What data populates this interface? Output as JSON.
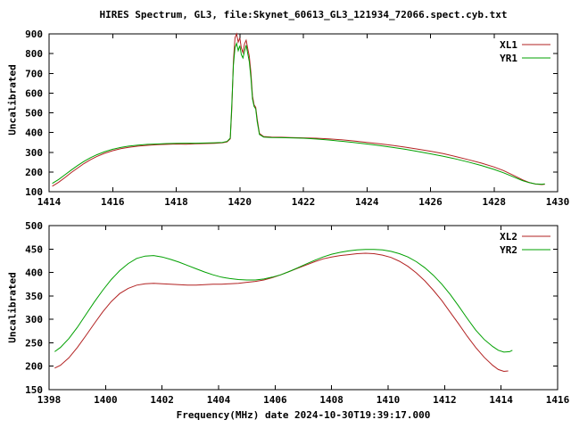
{
  "title": "HIRES Spectrum, GL3, file:Skynet_60613_GL3_121934_72066.spect.cyb.txt",
  "xlabel": "Frequency(MHz) date 2024-10-30T19:39:17.000",
  "colors": {
    "axis": "#000000",
    "background": "#ffffff",
    "red_trace": "#b22222",
    "green_trace": "#00a000"
  },
  "chart_data": [
    {
      "type": "line",
      "panel": "top",
      "ylabel": "Uncalibrated",
      "xlim": [
        1414,
        1430
      ],
      "ylim": [
        100,
        900
      ],
      "xticks": [
        1414,
        1416,
        1418,
        1420,
        1422,
        1424,
        1426,
        1428,
        1430
      ],
      "yticks": [
        100,
        200,
        300,
        400,
        500,
        600,
        700,
        800,
        900
      ],
      "grid": false,
      "legend_position": "top-right",
      "series": [
        {
          "name": "XL1",
          "color": "#b22222",
          "points": [
            [
              1414.1,
              128
            ],
            [
              1414.3,
              148
            ],
            [
              1414.5,
              172
            ],
            [
              1414.7,
              197
            ],
            [
              1414.9,
              220
            ],
            [
              1415.1,
              243
            ],
            [
              1415.3,
              262
            ],
            [
              1415.5,
              278
            ],
            [
              1415.75,
              295
            ],
            [
              1416.0,
              308
            ],
            [
              1416.25,
              318
            ],
            [
              1416.5,
              325
            ],
            [
              1416.8,
              331
            ],
            [
              1417.1,
              335
            ],
            [
              1417.4,
              338
            ],
            [
              1417.7,
              340
            ],
            [
              1418.0,
              342
            ],
            [
              1418.3,
              341
            ],
            [
              1418.6,
              343
            ],
            [
              1418.9,
              344
            ],
            [
              1419.2,
              345
            ],
            [
              1419.45,
              348
            ],
            [
              1419.6,
              352
            ],
            [
              1419.7,
              368
            ],
            [
              1419.75,
              520
            ],
            [
              1419.8,
              760
            ],
            [
              1419.85,
              880
            ],
            [
              1419.9,
              900
            ],
            [
              1419.95,
              858
            ],
            [
              1420.0,
              880
            ],
            [
              1420.05,
              828
            ],
            [
              1420.1,
              805
            ],
            [
              1420.15,
              850
            ],
            [
              1420.2,
              868
            ],
            [
              1420.25,
              825
            ],
            [
              1420.3,
              788
            ],
            [
              1420.35,
              705
            ],
            [
              1420.4,
              585
            ],
            [
              1420.45,
              540
            ],
            [
              1420.5,
              528
            ],
            [
              1420.55,
              468
            ],
            [
              1420.62,
              395
            ],
            [
              1420.75,
              380
            ],
            [
              1421.0,
              377
            ],
            [
              1421.3,
              376
            ],
            [
              1421.6,
              375
            ],
            [
              1422.0,
              373
            ],
            [
              1422.4,
              371
            ],
            [
              1422.8,
              368
            ],
            [
              1423.2,
              363
            ],
            [
              1423.6,
              357
            ],
            [
              1424.0,
              350
            ],
            [
              1424.4,
              343
            ],
            [
              1424.8,
              335
            ],
            [
              1425.2,
              326
            ],
            [
              1425.6,
              316
            ],
            [
              1426.0,
              305
            ],
            [
              1426.4,
              293
            ],
            [
              1426.8,
              278
            ],
            [
              1427.2,
              262
            ],
            [
              1427.6,
              245
            ],
            [
              1428.0,
              225
            ],
            [
              1428.3,
              207
            ],
            [
              1428.6,
              184
            ],
            [
              1428.9,
              160
            ],
            [
              1429.1,
              147
            ],
            [
              1429.3,
              139
            ],
            [
              1429.5,
              136
            ],
            [
              1429.6,
              138
            ]
          ]
        },
        {
          "name": "YR1",
          "color": "#00a000",
          "points": [
            [
              1414.1,
              142
            ],
            [
              1414.3,
              162
            ],
            [
              1414.5,
              186
            ],
            [
              1414.7,
              210
            ],
            [
              1414.9,
              233
            ],
            [
              1415.1,
              254
            ],
            [
              1415.3,
              272
            ],
            [
              1415.5,
              287
            ],
            [
              1415.75,
              303
            ],
            [
              1416.0,
              315
            ],
            [
              1416.25,
              324
            ],
            [
              1416.5,
              331
            ],
            [
              1416.8,
              336
            ],
            [
              1417.1,
              340
            ],
            [
              1417.4,
              342
            ],
            [
              1417.7,
              344
            ],
            [
              1418.0,
              345
            ],
            [
              1418.3,
              346
            ],
            [
              1418.6,
              346
            ],
            [
              1418.9,
              347
            ],
            [
              1419.2,
              348
            ],
            [
              1419.45,
              350
            ],
            [
              1419.6,
              355
            ],
            [
              1419.7,
              372
            ],
            [
              1419.75,
              540
            ],
            [
              1419.8,
              740
            ],
            [
              1419.85,
              830
            ],
            [
              1419.9,
              852
            ],
            [
              1419.95,
              815
            ],
            [
              1420.0,
              840
            ],
            [
              1420.05,
              795
            ],
            [
              1420.1,
              778
            ],
            [
              1420.15,
              812
            ],
            [
              1420.2,
              842
            ],
            [
              1420.25,
              800
            ],
            [
              1420.3,
              760
            ],
            [
              1420.35,
              680
            ],
            [
              1420.4,
              570
            ],
            [
              1420.45,
              532
            ],
            [
              1420.5,
              520
            ],
            [
              1420.55,
              455
            ],
            [
              1420.62,
              390
            ],
            [
              1420.75,
              377
            ],
            [
              1421.0,
              375
            ],
            [
              1421.3,
              374
            ],
            [
              1421.6,
              373
            ],
            [
              1422.0,
              371
            ],
            [
              1422.4,
              367
            ],
            [
              1422.8,
              362
            ],
            [
              1423.2,
              356
            ],
            [
              1423.6,
              349
            ],
            [
              1424.0,
              342
            ],
            [
              1424.4,
              334
            ],
            [
              1424.8,
              325
            ],
            [
              1425.2,
              315
            ],
            [
              1425.6,
              304
            ],
            [
              1426.0,
              292
            ],
            [
              1426.4,
              280
            ],
            [
              1426.8,
              266
            ],
            [
              1427.2,
              250
            ],
            [
              1427.6,
              233
            ],
            [
              1428.0,
              213
            ],
            [
              1428.3,
              196
            ],
            [
              1428.6,
              176
            ],
            [
              1428.9,
              156
            ],
            [
              1429.1,
              146
            ],
            [
              1429.3,
              140
            ],
            [
              1429.5,
              138
            ],
            [
              1429.6,
              140
            ]
          ]
        }
      ]
    },
    {
      "type": "line",
      "panel": "bottom",
      "ylabel": "Uncalibrated",
      "xlim": [
        1398,
        1416
      ],
      "ylim": [
        150,
        500
      ],
      "xticks": [
        1398,
        1400,
        1402,
        1404,
        1406,
        1408,
        1410,
        1412,
        1414,
        1416
      ],
      "yticks": [
        150,
        200,
        250,
        300,
        350,
        400,
        450,
        500
      ],
      "grid": false,
      "legend_position": "top-right",
      "series": [
        {
          "name": "XL2",
          "color": "#b22222",
          "points": [
            [
              1398.2,
              196
            ],
            [
              1398.4,
              202
            ],
            [
              1398.7,
              218
            ],
            [
              1399.0,
              240
            ],
            [
              1399.3,
              265
            ],
            [
              1399.6,
              291
            ],
            [
              1399.9,
              316
            ],
            [
              1400.2,
              338
            ],
            [
              1400.5,
              355
            ],
            [
              1400.8,
              366
            ],
            [
              1401.1,
              373
            ],
            [
              1401.4,
              376
            ],
            [
              1401.7,
              377
            ],
            [
              1402.0,
              376
            ],
            [
              1402.3,
              375
            ],
            [
              1402.6,
              374
            ],
            [
              1402.9,
              373
            ],
            [
              1403.2,
              373
            ],
            [
              1403.5,
              374
            ],
            [
              1403.8,
              375
            ],
            [
              1404.1,
              375
            ],
            [
              1404.4,
              376
            ],
            [
              1404.7,
              377
            ],
            [
              1405.0,
              379
            ],
            [
              1405.3,
              381
            ],
            [
              1405.6,
              384
            ],
            [
              1405.9,
              389
            ],
            [
              1406.2,
              395
            ],
            [
              1406.5,
              402
            ],
            [
              1406.8,
              409
            ],
            [
              1407.1,
              416
            ],
            [
              1407.4,
              423
            ],
            [
              1407.7,
              429
            ],
            [
              1408.0,
              433
            ],
            [
              1408.3,
              436
            ],
            [
              1408.6,
              438
            ],
            [
              1408.9,
              440
            ],
            [
              1409.2,
              441
            ],
            [
              1409.5,
              440
            ],
            [
              1409.8,
              437
            ],
            [
              1410.1,
              432
            ],
            [
              1410.4,
              424
            ],
            [
              1410.7,
              413
            ],
            [
              1411.0,
              399
            ],
            [
              1411.3,
              382
            ],
            [
              1411.6,
              362
            ],
            [
              1411.9,
              340
            ],
            [
              1412.2,
              315
            ],
            [
              1412.5,
              290
            ],
            [
              1412.8,
              264
            ],
            [
              1413.1,
              240
            ],
            [
              1413.4,
              219
            ],
            [
              1413.7,
              202
            ],
            [
              1413.9,
              193
            ],
            [
              1414.1,
              189
            ],
            [
              1414.25,
              190
            ]
          ]
        },
        {
          "name": "YR2",
          "color": "#00a000",
          "points": [
            [
              1398.2,
              231
            ],
            [
              1398.4,
              240
            ],
            [
              1398.7,
              259
            ],
            [
              1399.0,
              283
            ],
            [
              1399.3,
              310
            ],
            [
              1399.6,
              337
            ],
            [
              1399.9,
              362
            ],
            [
              1400.2,
              385
            ],
            [
              1400.5,
              404
            ],
            [
              1400.8,
              419
            ],
            [
              1401.1,
              430
            ],
            [
              1401.4,
              435
            ],
            [
              1401.7,
              436
            ],
            [
              1402.0,
              433
            ],
            [
              1402.3,
              428
            ],
            [
              1402.6,
              422
            ],
            [
              1402.9,
              415
            ],
            [
              1403.2,
              408
            ],
            [
              1403.5,
              401
            ],
            [
              1403.8,
              395
            ],
            [
              1404.1,
              390
            ],
            [
              1404.4,
              387
            ],
            [
              1404.7,
              385
            ],
            [
              1405.0,
              384
            ],
            [
              1405.3,
              384
            ],
            [
              1405.6,
              386
            ],
            [
              1405.9,
              390
            ],
            [
              1406.2,
              395
            ],
            [
              1406.5,
              402
            ],
            [
              1406.8,
              410
            ],
            [
              1407.1,
              418
            ],
            [
              1407.4,
              426
            ],
            [
              1407.7,
              433
            ],
            [
              1408.0,
              439
            ],
            [
              1408.3,
              443
            ],
            [
              1408.6,
              446
            ],
            [
              1408.9,
              448
            ],
            [
              1409.2,
              449
            ],
            [
              1409.5,
              449
            ],
            [
              1409.8,
              448
            ],
            [
              1410.1,
              445
            ],
            [
              1410.4,
              440
            ],
            [
              1410.7,
              433
            ],
            [
              1411.0,
              423
            ],
            [
              1411.3,
              410
            ],
            [
              1411.6,
              394
            ],
            [
              1411.9,
              375
            ],
            [
              1412.2,
              353
            ],
            [
              1412.5,
              328
            ],
            [
              1412.8,
              302
            ],
            [
              1413.1,
              277
            ],
            [
              1413.4,
              257
            ],
            [
              1413.7,
              242
            ],
            [
              1413.9,
              234
            ],
            [
              1414.1,
              230
            ],
            [
              1414.3,
              231
            ],
            [
              1414.4,
              234
            ]
          ]
        }
      ]
    }
  ]
}
